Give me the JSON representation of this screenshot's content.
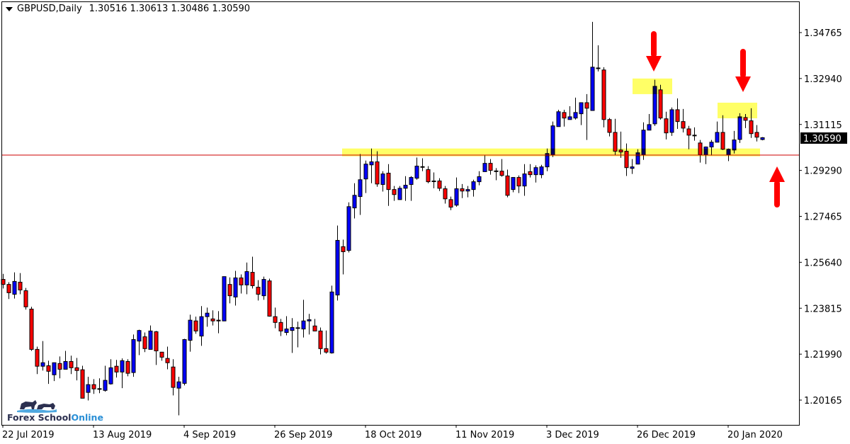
{
  "header": {
    "symbol_timeframe": "GBPUSD,Daily",
    "ohlc": "1.30516 1.30613 1.30486 1.30590"
  },
  "logo": {
    "part1": "Forex School",
    "part2": "Online"
  },
  "chart_data": {
    "type": "candlestick",
    "symbol": "GBPUSD",
    "timeframe": "Daily",
    "colors": {
      "bull": "#0000ff",
      "bear": "#ff0000",
      "wick": "#000000",
      "zone": "#ffff66",
      "arrow": "#ff0000",
      "hline": "#cc0000"
    },
    "y_ticks": [
      "1.34765",
      "1.32940",
      "1.31115",
      "1.29290",
      "1.27465",
      "1.25640",
      "1.23815",
      "1.21990",
      "1.20165"
    ],
    "ylim": [
      1.20165,
      1.34765
    ],
    "x_ticks": [
      "22 Jul 2019",
      "13 Aug 2019",
      "4 Sep 2019",
      "26 Sep 2019",
      "18 Oct 2019",
      "11 Nov 2019",
      "3 Dec 2019",
      "26 Dec 2019",
      "20 Jan 2020"
    ],
    "current_price": "1.30590",
    "hline": 1.299,
    "zones": [
      {
        "name": "support-zone",
        "low": 1.2985,
        "high": 1.3016
      },
      {
        "name": "resistance-zone-1",
        "low": 1.3232,
        "high": 1.3294
      },
      {
        "name": "resistance-zone-2",
        "low": 1.3136,
        "high": 1.3198
      }
    ],
    "ohlc_fields": [
      "open",
      "high",
      "low",
      "close"
    ],
    "candles": [
      [
        1.2496,
        1.2518,
        1.246,
        1.2476
      ],
      [
        1.2476,
        1.2485,
        1.2418,
        1.2443
      ],
      [
        1.2437,
        1.2524,
        1.242,
        1.2488
      ],
      [
        1.2485,
        1.2521,
        1.2437,
        1.2454
      ],
      [
        1.2451,
        1.2462,
        1.2376,
        1.2387
      ],
      [
        1.2378,
        1.2387,
        1.2212,
        1.2218
      ],
      [
        1.2218,
        1.2229,
        1.212,
        1.2151
      ],
      [
        1.2151,
        1.2251,
        1.2134,
        1.2165
      ],
      [
        1.2153,
        1.2173,
        1.2081,
        1.2131
      ],
      [
        1.2117,
        1.2165,
        1.2092,
        1.2165
      ],
      [
        1.2162,
        1.219,
        1.2103,
        1.2139
      ],
      [
        1.2139,
        1.2212,
        1.2139,
        1.217
      ],
      [
        1.217,
        1.2193,
        1.212,
        1.2145
      ],
      [
        1.2145,
        1.2184,
        1.2095,
        1.2134
      ],
      [
        1.2137,
        1.2153,
        1.2024,
        1.2024
      ],
      [
        1.2047,
        1.2109,
        1.2015,
        1.2078
      ],
      [
        1.2078,
        1.21,
        1.2041,
        1.2061
      ],
      [
        1.2061,
        1.2103,
        1.2044,
        1.2062
      ],
      [
        1.2055,
        1.2153,
        1.205,
        1.2095
      ],
      [
        1.2081,
        1.2179,
        1.2078,
        1.2145
      ],
      [
        1.2151,
        1.2176,
        1.2106,
        1.2128
      ],
      [
        1.2128,
        1.2182,
        1.2064,
        1.2173
      ],
      [
        1.217,
        1.2179,
        1.2111,
        1.2123
      ],
      [
        1.2126,
        1.2277,
        1.2109,
        1.2257
      ],
      [
        1.2251,
        1.2296,
        1.2195,
        1.2293
      ],
      [
        1.2268,
        1.2285,
        1.2207,
        1.2221
      ],
      [
        1.2218,
        1.2313,
        1.2218,
        1.2291
      ],
      [
        1.2288,
        1.2291,
        1.2156,
        1.2212
      ],
      [
        1.2207,
        1.2207,
        1.2173,
        1.2187
      ],
      [
        1.2182,
        1.2229,
        1.2139,
        1.2165
      ],
      [
        1.2148,
        1.2179,
        1.2035,
        1.2067
      ],
      [
        1.2064,
        1.2109,
        1.1956,
        1.2089
      ],
      [
        1.2083,
        1.226,
        1.2075,
        1.2257
      ],
      [
        1.2254,
        1.2356,
        1.2209,
        1.2334
      ],
      [
        1.2331,
        1.2348,
        1.228,
        1.2291
      ],
      [
        1.2271,
        1.239,
        1.2232,
        1.2348
      ],
      [
        1.2348,
        1.2384,
        1.2308,
        1.2362
      ],
      [
        1.2339,
        1.2373,
        1.2313,
        1.2331
      ],
      [
        1.2334,
        1.237,
        1.2282,
        1.2331
      ],
      [
        1.2331,
        1.2507,
        1.2331,
        1.2507
      ],
      [
        1.2476,
        1.2504,
        1.2401,
        1.2431
      ],
      [
        1.2426,
        1.253,
        1.2392,
        1.2502
      ],
      [
        1.2502,
        1.2516,
        1.244,
        1.2474
      ],
      [
        1.2474,
        1.2563,
        1.2437,
        1.2527
      ],
      [
        1.2524,
        1.2586,
        1.246,
        1.2471
      ],
      [
        1.2465,
        1.2493,
        1.2412,
        1.2437
      ],
      [
        1.2431,
        1.2507,
        1.2415,
        1.2496
      ],
      [
        1.249,
        1.2499,
        1.2348,
        1.235
      ],
      [
        1.2348,
        1.2384,
        1.2302,
        1.2325
      ],
      [
        1.2325,
        1.2339,
        1.2271,
        1.2291
      ],
      [
        1.2285,
        1.235,
        1.2274,
        1.2299
      ],
      [
        1.2293,
        1.2342,
        1.2204,
        1.2305
      ],
      [
        1.2302,
        1.2328,
        1.2226,
        1.2304
      ],
      [
        1.2299,
        1.2415,
        1.2265,
        1.2331
      ],
      [
        1.2331,
        1.2359,
        1.2277,
        1.2336
      ],
      [
        1.2311,
        1.2339,
        1.2291,
        1.2291
      ],
      [
        1.2291,
        1.2305,
        1.2198,
        1.2221
      ],
      [
        1.2221,
        1.2293,
        1.2201,
        1.2207
      ],
      [
        1.2204,
        1.2471,
        1.2201,
        1.2446
      ],
      [
        1.2434,
        1.271,
        1.2412,
        1.2651
      ],
      [
        1.2626,
        1.2654,
        1.2516,
        1.2606
      ],
      [
        1.2611,
        1.2802,
        1.2603,
        1.2785
      ],
      [
        1.278,
        1.2878,
        1.2738,
        1.283
      ],
      [
        1.2825,
        1.2994,
        1.2752,
        1.2892
      ],
      [
        1.2895,
        1.2968,
        1.2839,
        1.2954
      ],
      [
        1.2951,
        1.3016,
        1.2878,
        1.2963
      ],
      [
        1.2963,
        1.3005,
        1.2864,
        1.2875
      ],
      [
        1.2873,
        1.2926,
        1.2845,
        1.2915
      ],
      [
        1.2918,
        1.2954,
        1.2788,
        1.2853
      ],
      [
        1.2853,
        1.2867,
        1.2808,
        1.2833
      ],
      [
        1.2813,
        1.2867,
        1.2813,
        1.2858
      ],
      [
        1.2858,
        1.2906,
        1.2808,
        1.287
      ],
      [
        1.2873,
        1.2906,
        1.2808,
        1.2901
      ],
      [
        1.2898,
        1.298,
        1.2892,
        1.2946
      ],
      [
        1.2943,
        1.2977,
        1.2926,
        1.2944
      ],
      [
        1.2932,
        1.2946,
        1.2878,
        1.2884
      ],
      [
        1.2887,
        1.2921,
        1.2858,
        1.2886
      ],
      [
        1.2887,
        1.2898,
        1.2847,
        1.2858
      ],
      [
        1.2856,
        1.2867,
        1.2797,
        1.2816
      ],
      [
        1.2813,
        1.2825,
        1.2771,
        1.2783
      ],
      [
        1.2791,
        1.2901,
        1.2785,
        1.2856
      ],
      [
        1.2856,
        1.2875,
        1.2819,
        1.2847
      ],
      [
        1.2847,
        1.2867,
        1.2822,
        1.2853
      ],
      [
        1.2853,
        1.2892,
        1.2825,
        1.2884
      ],
      [
        1.2884,
        1.2926,
        1.287,
        1.2904
      ],
      [
        1.2924,
        1.2988,
        1.2924,
        1.2957
      ],
      [
        1.2957,
        1.2974,
        1.2912,
        1.2929
      ],
      [
        1.2926,
        1.2938,
        1.289,
        1.2927
      ],
      [
        1.2926,
        1.2974,
        1.2904,
        1.2909
      ],
      [
        1.2907,
        1.2932,
        1.2822,
        1.283
      ],
      [
        1.2853,
        1.2901,
        1.2842,
        1.2901
      ],
      [
        1.2901,
        1.2909,
        1.2839,
        1.2867
      ],
      [
        1.2867,
        1.2954,
        1.2828,
        1.2915
      ],
      [
        1.2924,
        1.2954,
        1.2901,
        1.2912
      ],
      [
        1.2912,
        1.2949,
        1.2881,
        1.294
      ],
      [
        1.2912,
        1.2951,
        1.2898,
        1.2943
      ],
      [
        1.2943,
        1.3016,
        1.2926,
        1.2996
      ],
      [
        1.2991,
        1.3123,
        1.2982,
        1.3106
      ],
      [
        1.3103,
        1.317,
        1.3103,
        1.3162
      ],
      [
        1.3159,
        1.317,
        1.3103,
        1.3137
      ],
      [
        1.3131,
        1.3184,
        1.3131,
        1.3142
      ],
      [
        1.3137,
        1.3218,
        1.3131,
        1.3159
      ],
      [
        1.3154,
        1.3198,
        1.3109,
        1.3198
      ],
      [
        1.3198,
        1.3232,
        1.305,
        1.3176
      ],
      [
        1.3167,
        1.3519,
        1.3167,
        1.3339
      ],
      [
        1.3336,
        1.3426,
        1.3322,
        1.3335
      ],
      [
        1.3328,
        1.3339,
        1.31,
        1.3131
      ],
      [
        1.3131,
        1.3137,
        1.3064,
        1.308
      ],
      [
        1.308,
        1.3134,
        1.2991,
        1.3005
      ],
      [
        1.301,
        1.3083,
        1.2979,
        1.3002
      ],
      [
        1.3005,
        1.3036,
        1.2907,
        1.294
      ],
      [
        1.2937,
        1.2974,
        1.2915,
        1.2943
      ],
      [
        1.2954,
        1.3013,
        1.2954,
        1.2999
      ],
      [
        1.2991,
        1.312,
        1.2971,
        1.3089
      ],
      [
        1.3089,
        1.3153,
        1.3089,
        1.3111
      ],
      [
        1.3114,
        1.3289,
        1.3106,
        1.3263
      ],
      [
        1.3249,
        1.3269,
        1.3131,
        1.3137
      ],
      [
        1.3134,
        1.3162,
        1.3052,
        1.3078
      ],
      [
        1.308,
        1.3179,
        1.3066,
        1.317
      ],
      [
        1.317,
        1.3215,
        1.3094,
        1.3123
      ],
      [
        1.3123,
        1.3173,
        1.308,
        1.3097
      ],
      [
        1.3094,
        1.3106,
        1.3013,
        1.3069
      ],
      [
        1.3069,
        1.31,
        1.3047,
        1.3068
      ],
      [
        1.3038,
        1.305,
        1.296,
        1.2991
      ],
      [
        1.2991,
        1.3024,
        1.2954,
        1.3022
      ],
      [
        1.3022,
        1.305,
        1.2988,
        1.3041
      ],
      [
        1.3041,
        1.3123,
        1.3041,
        1.308
      ],
      [
        1.308,
        1.3148,
        1.301,
        1.3013
      ],
      [
        1.2991,
        1.3016,
        1.2966,
        1.3013
      ],
      [
        1.301,
        1.3086,
        1.2996,
        1.305
      ],
      [
        1.3052,
        1.3156,
        1.3038,
        1.3142
      ],
      [
        1.3139,
        1.3153,
        1.3097,
        1.3128
      ],
      [
        1.3126,
        1.3176,
        1.3058,
        1.3075
      ],
      [
        1.308,
        1.3109,
        1.3044,
        1.3061
      ],
      [
        1.30516,
        1.30613,
        1.30486,
        1.3059
      ]
    ]
  }
}
